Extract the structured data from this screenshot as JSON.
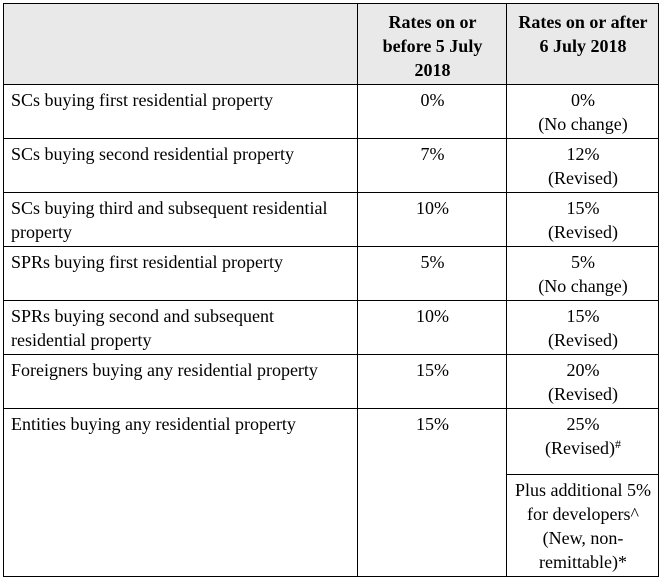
{
  "table": {
    "header": {
      "corner": "",
      "col_old": "Rates on or before 5 July 2018",
      "col_new": "Rates on or after 6 July 2018"
    },
    "rows": [
      {
        "category": "SCs buying first residential property",
        "old": "0%",
        "new": "0%",
        "note": "(No change)"
      },
      {
        "category": "SCs buying second residential property",
        "old": "7%",
        "new": "12%",
        "note": "(Revised)"
      },
      {
        "category": "SCs buying third and subsequent residential property",
        "old": "10%",
        "new": "15%",
        "note": "(Revised)"
      },
      {
        "category": "SPRs buying first residential property",
        "old": "5%",
        "new": "5%",
        "note": "(No change)"
      },
      {
        "category": "SPRs buying second and subsequent residential property",
        "old": "10%",
        "new": "15%",
        "note": "(Revised)"
      },
      {
        "category": "Foreigners buying any residential property",
        "old": "15%",
        "new": "20%",
        "note": "(Revised)"
      },
      {
        "category": "Entities buying any residential property",
        "old": "15%",
        "new": "25%",
        "note": "(Revised)",
        "note_mark": "#"
      }
    ],
    "developer_extra": {
      "line1": "Plus additional 5% for developers^",
      "line2": "(New, non-remittable)*"
    }
  }
}
